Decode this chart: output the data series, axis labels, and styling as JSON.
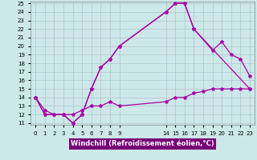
{
  "xlabel": "Windchill (Refroidissement éolien,°C)",
  "bg_color": "#cce8e8",
  "grid_color": "#aabbcc",
  "line_color": "#aa00aa",
  "line1_x": [
    0,
    1,
    2,
    3,
    4,
    5,
    6,
    7,
    8,
    9,
    14,
    15,
    16,
    17,
    23
  ],
  "line1_y": [
    14,
    12,
    12,
    12,
    11,
    12,
    15,
    17.5,
    18.5,
    20,
    24,
    25,
    25,
    22,
    15
  ],
  "line2_x": [
    0,
    1,
    2,
    3,
    4,
    5,
    6,
    7,
    8,
    9,
    14,
    15,
    16,
    17,
    19,
    20,
    21,
    22,
    23
  ],
  "line2_y": [
    14,
    12,
    12,
    12,
    11,
    12,
    15,
    17.5,
    18.5,
    20,
    24,
    25,
    25,
    22,
    19.5,
    20.5,
    19,
    18.5,
    16.5
  ],
  "line3_x": [
    0,
    1,
    2,
    3,
    4,
    5,
    6,
    7,
    8,
    9,
    14,
    15,
    16,
    17,
    18,
    19,
    20,
    21,
    22,
    23
  ],
  "line3_y": [
    14,
    12.5,
    12,
    12,
    12,
    12.5,
    13,
    13,
    13.5,
    13,
    13.5,
    14,
    14,
    14.5,
    14.7,
    15,
    15,
    15,
    15,
    15
  ],
  "ylim_min": 11,
  "ylim_max": 25,
  "yticks": [
    11,
    12,
    13,
    14,
    15,
    16,
    17,
    18,
    19,
    20,
    21,
    22,
    23,
    24,
    25
  ],
  "xticks_left": [
    0,
    1,
    2,
    3,
    4,
    5,
    6,
    7,
    8,
    9
  ],
  "xticks_right": [
    14,
    15,
    16,
    17,
    18,
    19,
    20,
    21,
    22,
    23
  ],
  "xlim_min": -0.5,
  "xlim_max": 23.5,
  "xlabel_bg": "#770077",
  "xlabel_fg": "#ffffff",
  "markersize": 3,
  "linewidth": 0.9,
  "tick_fontsize": 5,
  "xlabel_fontsize": 6
}
